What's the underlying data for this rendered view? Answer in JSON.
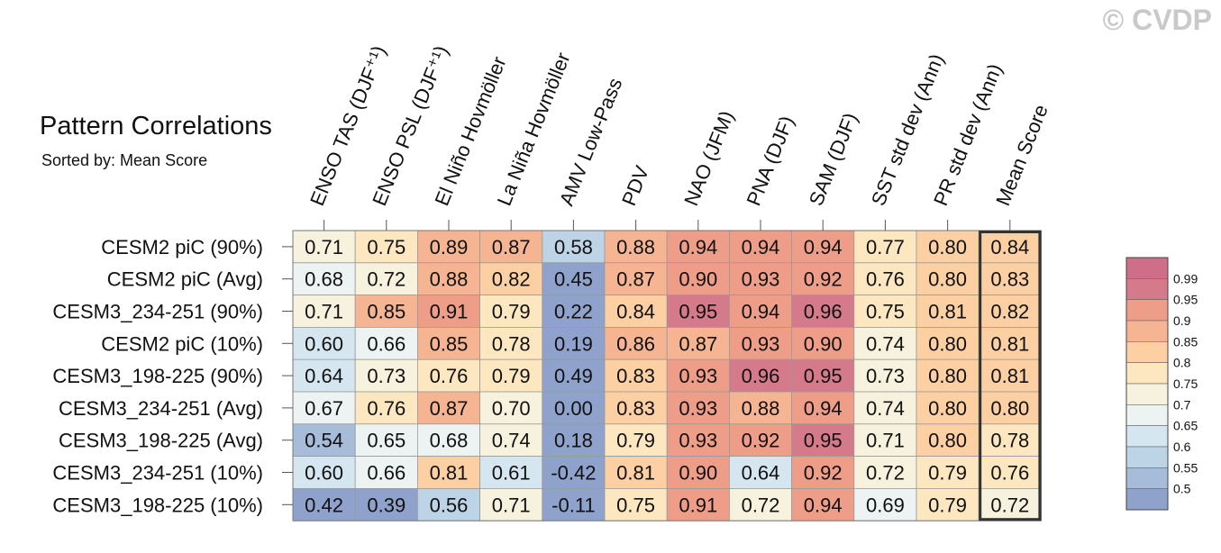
{
  "watermark": "© CVDP",
  "chart_data": {
    "type": "heatmap",
    "title": "Pattern Correlations",
    "subtitle": "Sorted by: Mean Score",
    "columns": [
      "ENSO TAS (DJF⁺¹)",
      "ENSO PSL (DJF⁺¹)",
      "El Niño Hovmöller",
      "La Niña Hovmöller",
      "AMV Low-Pass",
      "PDV",
      "NAO (JFM)",
      "PNA (DJF)",
      "SAM (DJF)",
      "SST std dev (Ann)",
      "PR std dev (Ann)",
      "Mean Score"
    ],
    "rows": [
      {
        "name": "CESM2 piC (90%)",
        "values": [
          "0.71",
          "0.75",
          "0.89",
          "0.87",
          "0.58",
          "0.88",
          "0.94",
          "0.94",
          "0.94",
          "0.77",
          "0.80",
          "0.84"
        ]
      },
      {
        "name": "CESM2 piC (Avg)",
        "values": [
          "0.68",
          "0.72",
          "0.88",
          "0.82",
          "0.45",
          "0.87",
          "0.90",
          "0.93",
          "0.92",
          "0.76",
          "0.80",
          "0.83"
        ]
      },
      {
        "name": "CESM3_234-251 (90%)",
        "values": [
          "0.71",
          "0.85",
          "0.91",
          "0.79",
          "0.22",
          "0.84",
          "0.95",
          "0.94",
          "0.96",
          "0.75",
          "0.81",
          "0.82"
        ]
      },
      {
        "name": "CESM2 piC (10%)",
        "values": [
          "0.60",
          "0.66",
          "0.85",
          "0.78",
          "0.19",
          "0.86",
          "0.87",
          "0.93",
          "0.90",
          "0.74",
          "0.80",
          "0.81"
        ]
      },
      {
        "name": "CESM3_198-225 (90%)",
        "values": [
          "0.64",
          "0.73",
          "0.76",
          "0.79",
          "0.49",
          "0.83",
          "0.93",
          "0.96",
          "0.95",
          "0.73",
          "0.80",
          "0.81"
        ]
      },
      {
        "name": "CESM3_234-251 (Avg)",
        "values": [
          "0.67",
          "0.76",
          "0.87",
          "0.70",
          "0.00",
          "0.83",
          "0.93",
          "0.88",
          "0.94",
          "0.74",
          "0.80",
          "0.80"
        ]
      },
      {
        "name": "CESM3_198-225 (Avg)",
        "values": [
          "0.54",
          "0.65",
          "0.68",
          "0.74",
          "0.18",
          "0.79",
          "0.93",
          "0.92",
          "0.95",
          "0.71",
          "0.80",
          "0.78"
        ]
      },
      {
        "name": "CESM3_234-251 (10%)",
        "values": [
          "0.60",
          "0.66",
          "0.81",
          "0.61",
          "-0.42",
          "0.81",
          "0.90",
          "0.64",
          "0.92",
          "0.72",
          "0.79",
          "0.76"
        ]
      },
      {
        "name": "CESM3_198-225 (10%)",
        "values": [
          "0.42",
          "0.39",
          "0.56",
          "0.71",
          "-0.11",
          "0.75",
          "0.91",
          "0.72",
          "0.94",
          "0.69",
          "0.79",
          "0.72"
        ]
      }
    ],
    "colorbar": {
      "levels": [
        "0.5",
        "0.55",
        "0.6",
        "0.65",
        "0.7",
        "0.75",
        "0.8",
        "0.85",
        "0.9",
        "0.95",
        "0.99"
      ],
      "colors": [
        "#8fa2cb",
        "#a6bcd9",
        "#bcd4e6",
        "#d5e6f0",
        "#edf3f2",
        "#f6f2dd",
        "#fde7c0",
        "#fcd0a3",
        "#f5b592",
        "#ee9e88",
        "#d47a8b",
        "#cf6e88"
      ]
    },
    "highlight_column": "Mean Score"
  }
}
